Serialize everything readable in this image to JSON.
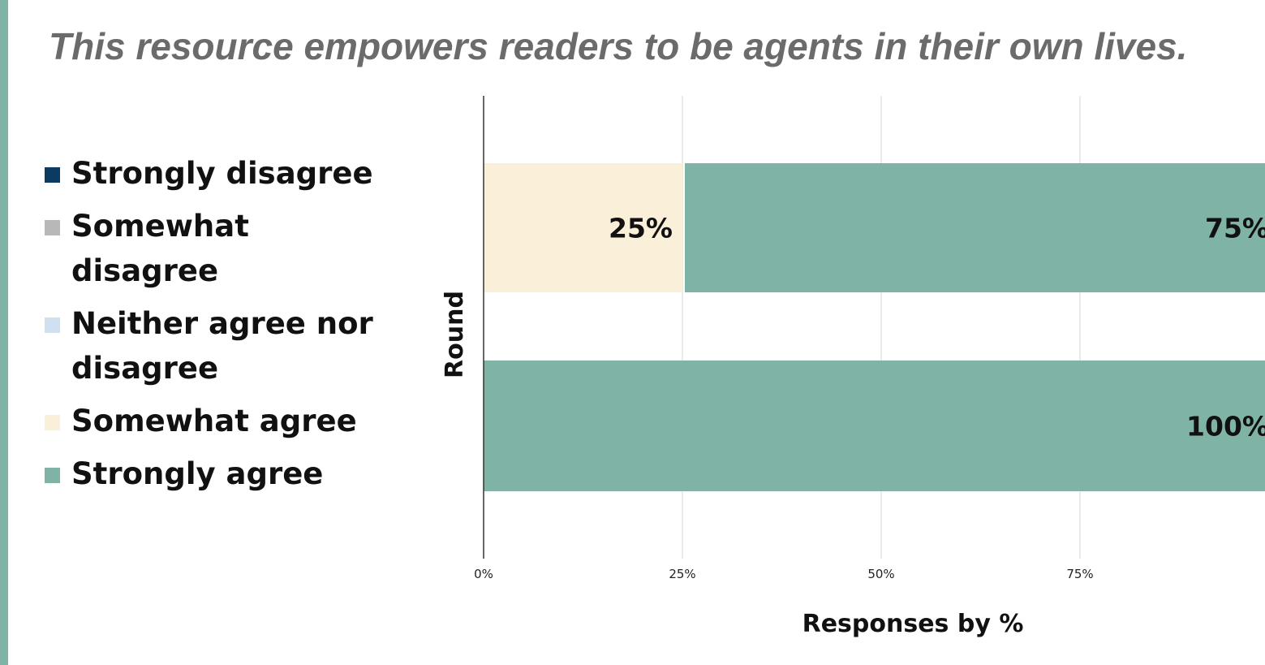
{
  "title": "This resource empowers readers to be agents in their own lives.",
  "colors": {
    "accent": "#7fb3a6",
    "strongly_disagree": "#0b3a63",
    "somewhat_disagree": "#b8b8b8",
    "neither": "#cfe0f1",
    "somewhat_agree": "#faf0da",
    "strongly_agree": "#7fb3a6"
  },
  "legend": [
    {
      "label": "Strongly disagree",
      "color": "#0b3a63"
    },
    {
      "label": "Somewhat disagree",
      "color": "#b8b8b8"
    },
    {
      "label": "Neither agree nor disagree",
      "color": "#cfe0f1"
    },
    {
      "label": "Somewhat agree",
      "color": "#faf0da"
    },
    {
      "label": "Strongly agree",
      "color": "#7fb3a6"
    }
  ],
  "chart_data": {
    "type": "bar",
    "orientation": "horizontal",
    "stacked": true,
    "title": "This resource empowers readers to be agents in their own lives.",
    "xlabel": "Responses by %",
    "ylabel": "Round",
    "xlim": [
      0,
      100
    ],
    "xticks": [
      "0%",
      "25%",
      "50%",
      "75%"
    ],
    "grid": true,
    "legend_position": "left",
    "series": [
      {
        "name": "Strongly disagree",
        "color": "#0b3a63",
        "values": [
          0,
          0
        ]
      },
      {
        "name": "Somewhat disagree",
        "color": "#b8b8b8",
        "values": [
          0,
          0
        ]
      },
      {
        "name": "Neither agree nor disagree",
        "color": "#cfe0f1",
        "values": [
          0,
          0
        ]
      },
      {
        "name": "Somewhat agree",
        "color": "#faf0da",
        "values": [
          25,
          0
        ]
      },
      {
        "name": "Strongly agree",
        "color": "#7fb3a6",
        "values": [
          75,
          100
        ]
      }
    ],
    "data_labels": [
      [
        "25%",
        "75%"
      ],
      [
        "100%"
      ]
    ]
  }
}
